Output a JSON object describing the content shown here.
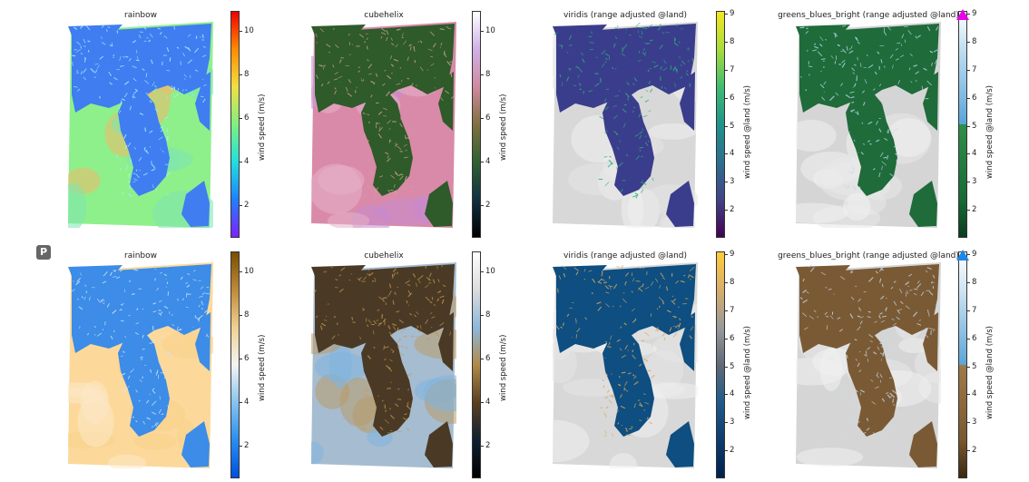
{
  "rows": [
    {
      "panels": [
        {
          "title": "rainbow",
          "colorbar_label": "wind speed (m/s)",
          "ticks": [
            "10",
            "8",
            "6",
            "4",
            "2"
          ],
          "colors": {
            "sea": "#8ef08a",
            "sea2": "#7de6b0",
            "land": "#3f7df0",
            "ridge": "#a8f0ff",
            "warm": "#f2b86c"
          }
        },
        {
          "title": "cubehelix",
          "colorbar_label": "wind speed (m/s)",
          "ticks": [
            "10",
            "8",
            "6",
            "4",
            "2"
          ],
          "colors": {
            "sea": "#d98aa8",
            "sea2": "#c78ad0",
            "land": "#2f5a2a",
            "ridge": "#c9a58e",
            "warm": "#e6b0c9"
          }
        },
        {
          "title": "viridis (range adjusted @land)",
          "colorbar_label": "wind speed @land (m/s)",
          "ticks": [
            "9",
            "8",
            "7",
            "6",
            "5",
            "4",
            "3",
            "2"
          ],
          "colors": {
            "sea": "#d8d8d8",
            "sea2": "#f0f0f0",
            "land": "#3a3d8c",
            "ridge": "#2bb07a",
            "warm": "#e6e6e6"
          }
        },
        {
          "title": "greens_blues_bright (range adjusted @land)",
          "colorbar_label": "wind speed @land (m/s)",
          "ticks": [
            "9",
            "8",
            "7",
            "6",
            "5",
            "4",
            "3",
            "2"
          ],
          "colors": {
            "sea": "#d5d5d5",
            "sea2": "#f0f0f0",
            "land": "#1f6b3a",
            "ridge": "#bcdcf0",
            "warm": "#e8e8e8"
          }
        }
      ]
    },
    {
      "panels": [
        {
          "title": "rainbow",
          "colorbar_label": "wind speed (m/s)",
          "ticks": [
            "10",
            "8",
            "6",
            "4",
            "2"
          ],
          "colors": {
            "sea": "#fcd99a",
            "sea2": "#fbe8c8",
            "land": "#3c8ce8",
            "ridge": "#cfe6f5",
            "warm": "#f7cf8a"
          }
        },
        {
          "title": "cubehelix",
          "colorbar_label": "wind speed (m/s)",
          "ticks": [
            "10",
            "8",
            "6",
            "4",
            "2"
          ],
          "colors": {
            "sea": "#a6bcd0",
            "sea2": "#7fb4e0",
            "land": "#4a3a25",
            "ridge": "#c89650",
            "warm": "#b89a6a"
          }
        },
        {
          "title": "viridis (range adjusted @land)",
          "colorbar_label": "wind speed @land (m/s)",
          "ticks": [
            "9",
            "8",
            "7",
            "6",
            "5",
            "4",
            "3",
            "2"
          ],
          "colors": {
            "sea": "#d8d8d8",
            "sea2": "#f0f0f0",
            "land": "#0e4e80",
            "ridge": "#d8a860",
            "warm": "#e6e6e6"
          }
        },
        {
          "title": "greens_blues_bright (range adjusted @land)",
          "colorbar_label": "wind speed @land (m/s)",
          "ticks": [
            "9",
            "8",
            "7",
            "6",
            "5",
            "4",
            "3",
            "2"
          ],
          "colors": {
            "sea": "#d5d5d5",
            "sea2": "#f0f0f0",
            "land": "#7a5a35",
            "ridge": "#c4ddee",
            "warm": "#e8e8e8"
          }
        }
      ]
    }
  ],
  "colorbars": [
    [
      "#f00000",
      "#ff8c00",
      "#f0e040",
      "#80f080",
      "#20e0e0",
      "#2080ff",
      "#8020ff"
    ],
    [
      "#ffffff",
      "#d0b0e8",
      "#d08aa0",
      "#807040",
      "#306030",
      "#103040",
      "#000000"
    ],
    [
      "#f5e620",
      "#a8dc3c",
      "#40bc70",
      "#1f938b",
      "#2d6f8e",
      "#414487",
      "#440154"
    ],
    [
      "#ffffff",
      "#c0def2",
      "#8ec2e6",
      "#56a6d6|0.5",
      "#2f8f4a|0.5",
      "#186a35",
      "#0a3d1e"
    ],
    [
      "#7a4e00",
      "#c08a3a",
      "#f0d090",
      "#f4f4f4",
      "#86c4f0",
      "#2a8ef0",
      "#0050e0"
    ],
    [
      "#ffffff",
      "#dcdcdc",
      "#8eb8dc",
      "#b08a4a",
      "#5a4020",
      "#102030",
      "#000000"
    ],
    [
      "#ffcc3a",
      "#d6ae6a",
      "#9a9a9a",
      "#606a78",
      "#1f5a8a",
      "#0e3c6e",
      "#002050"
    ],
    [
      "#ffffff",
      "#cfe4f2",
      "#94c4e4",
      "#5aa6d6|0.5",
      "#a07a48|0.5",
      "#7a5830",
      "#3a2810"
    ]
  ],
  "extend_arrows": {
    "top_right": "#e600e6",
    "bottom_right": "#1a88e8"
  },
  "p_button": "P"
}
